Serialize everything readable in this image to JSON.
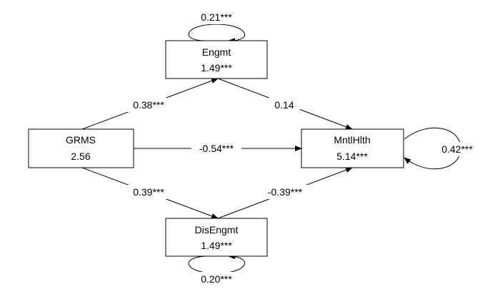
{
  "nodes": {
    "engmt": {
      "name": "Engmt",
      "value": "1.49***",
      "variance": "0.21***"
    },
    "grms": {
      "name": "GRMS",
      "value": "2.56"
    },
    "mntlhlth": {
      "name": "MntlHlth",
      "value": "5.14***",
      "variance": "0.42***"
    },
    "disengmt": {
      "name": "DisEngmt",
      "value": "1.49***",
      "variance": "0.20***"
    }
  },
  "paths": {
    "grms_to_engmt": "0.38***",
    "engmt_to_mntlhlth": "0.14",
    "grms_to_mntlhlth": "-0.54***",
    "grms_to_disengmt": "0.39***",
    "disengmt_to_mntlhlth": "-0.39***"
  },
  "colors": {
    "line": "#000000",
    "background": "#ffffff"
  }
}
